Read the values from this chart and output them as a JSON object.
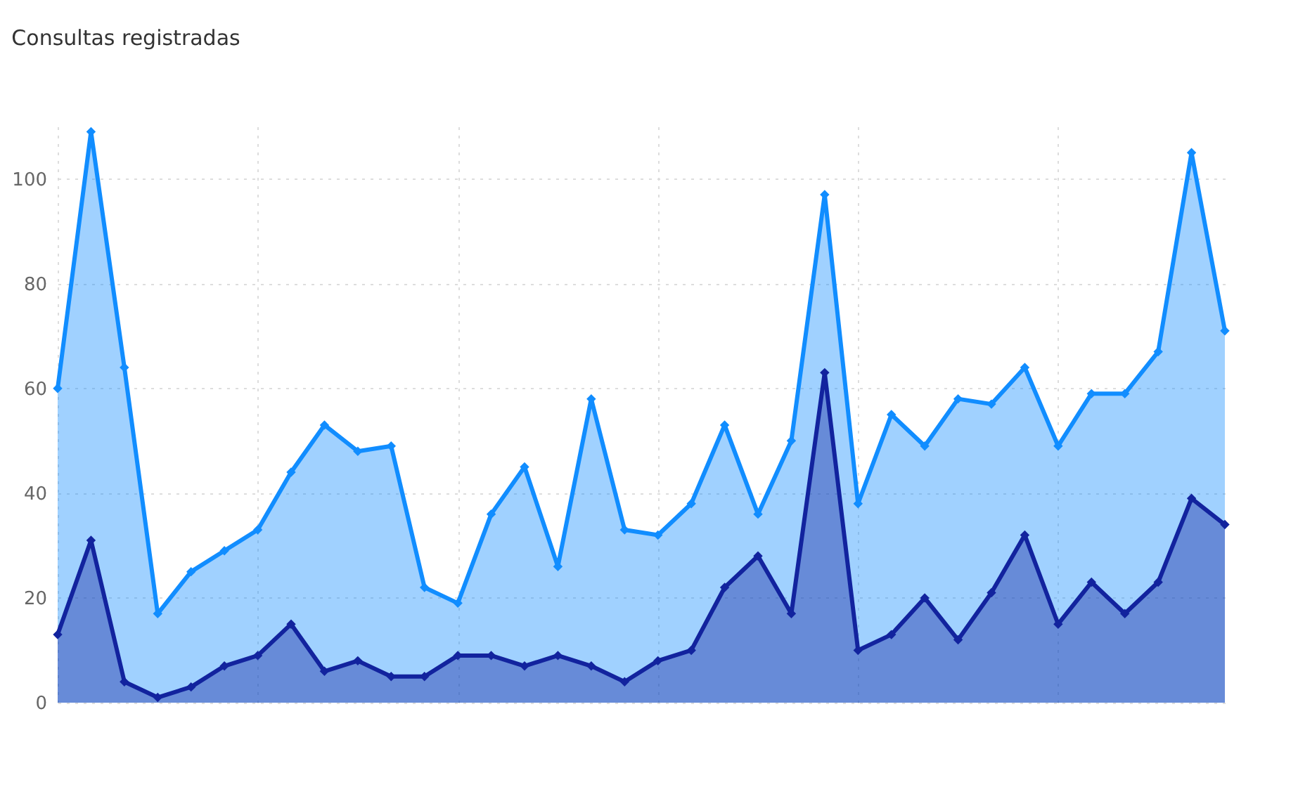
{
  "chart_data": {
    "type": "area",
    "title": "Consultas registradas",
    "categories": [
      null,
      null,
      null,
      null,
      null,
      null,
      null,
      null,
      null,
      null,
      null,
      null,
      null,
      null,
      null,
      null,
      null,
      null,
      null,
      null,
      null,
      null,
      null,
      null,
      null,
      null,
      null,
      null,
      null,
      null,
      null,
      null,
      null,
      null,
      null,
      null
    ],
    "series": [
      {
        "color": "#118dff",
        "values": [
          60,
          109,
          64,
          17,
          25,
          29,
          33,
          44,
          53,
          48,
          49,
          22,
          19,
          36,
          45,
          26,
          58,
          33,
          32,
          38,
          53,
          36,
          50,
          97,
          38,
          55,
          49,
          58,
          57,
          64,
          49,
          59,
          59,
          67,
          105,
          71
        ]
      },
      {
        "color": "#12239e",
        "values": [
          13,
          31,
          4,
          1,
          3,
          7,
          9,
          15,
          6,
          8,
          5,
          5,
          9,
          9,
          7,
          9,
          7,
          4,
          8,
          10,
          22,
          28,
          17,
          63,
          10,
          13,
          20,
          12,
          21,
          32,
          15,
          23,
          17,
          23,
          39,
          34
        ]
      }
    ],
    "ylim": [
      0,
      110
    ],
    "yticks": [
      0,
      20,
      40,
      60,
      80,
      100
    ],
    "grid": true,
    "tick_labels": "y",
    "marker": "diamond",
    "line_style": "solid"
  }
}
